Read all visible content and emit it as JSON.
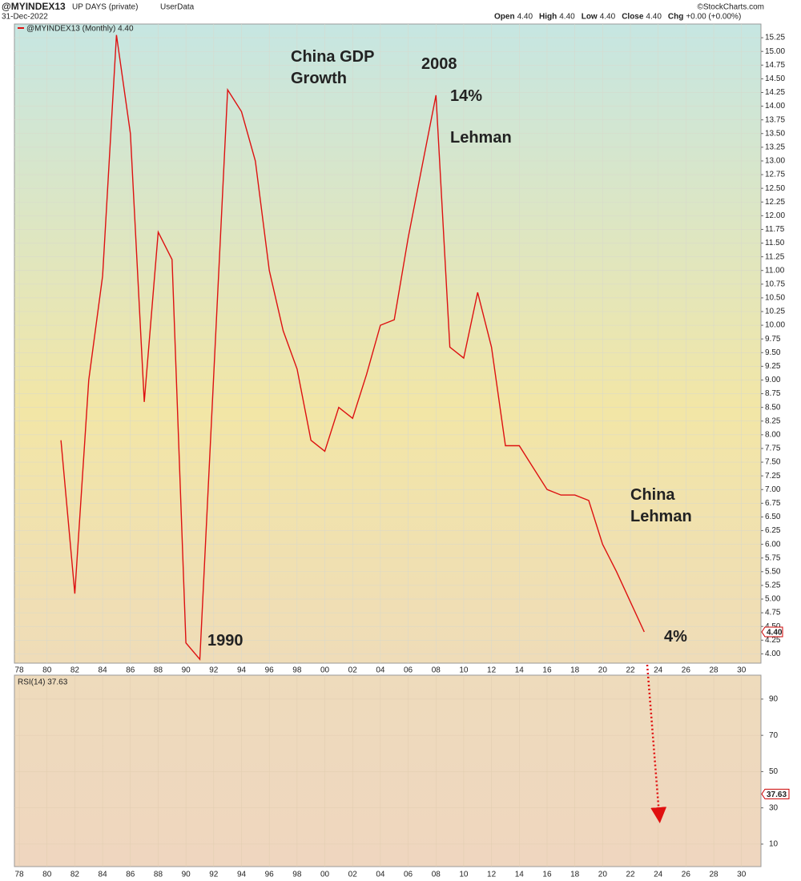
{
  "chart_data": {
    "type": "line",
    "symbol": "@MYINDEX13",
    "description": "UP DAYS (private)",
    "source": "UserData",
    "date": "31-Dec-2022",
    "credit": "©StockCharts.com",
    "ohlc": [
      {
        "label": "Open",
        "value": "4.40"
      },
      {
        "label": "High",
        "value": "4.40"
      },
      {
        "label": "Low",
        "value": "4.40"
      },
      {
        "label": "Close",
        "value": "4.40"
      },
      {
        "label": "Chg",
        "value": "+0.00 (+0.00%)"
      }
    ],
    "last_value": {
      "value": 4.4,
      "label": "4.40"
    },
    "x": [
      1981,
      1982,
      1983,
      1984,
      1985,
      1986,
      1987,
      1988,
      1989,
      1990,
      1991,
      1993,
      1994,
      1995,
      1996,
      1997,
      1998,
      1999,
      2000,
      2001,
      2002,
      2003,
      2004,
      2005,
      2006,
      2007,
      2008,
      2009,
      2010,
      2011,
      2012,
      2013,
      2014,
      2015,
      2016,
      2017,
      2018,
      2019,
      2020,
      2021,
      2022,
      2023
    ],
    "series": [
      {
        "name": "@MYINDEX13 (Monthly) 4.40",
        "color": "#dd1111",
        "values": [
          7.9,
          5.1,
          9.0,
          10.9,
          15.3,
          13.5,
          8.6,
          11.7,
          11.2,
          4.2,
          3.9,
          14.3,
          13.9,
          13.0,
          11.0,
          9.9,
          9.2,
          7.9,
          7.7,
          8.5,
          8.3,
          9.1,
          10.0,
          10.1,
          11.6,
          12.9,
          14.2,
          9.6,
          9.4,
          10.6,
          9.6,
          7.8,
          7.8,
          7.4,
          7.0,
          6.9,
          6.9,
          6.8,
          6.0,
          5.5,
          4.95,
          4.4
        ]
      }
    ],
    "xlim": [
      1977.65,
      2031.4
    ],
    "xticks": [
      {
        "value": 1978,
        "label": "78"
      },
      {
        "value": 1980,
        "label": "80"
      },
      {
        "value": 1982,
        "label": "82"
      },
      {
        "value": 1984,
        "label": "84"
      },
      {
        "value": 1986,
        "label": "86"
      },
      {
        "value": 1988,
        "label": "88"
      },
      {
        "value": 1990,
        "label": "90"
      },
      {
        "value": 1992,
        "label": "92"
      },
      {
        "value": 1994,
        "label": "94"
      },
      {
        "value": 1996,
        "label": "96"
      },
      {
        "value": 1998,
        "label": "98"
      },
      {
        "value": 2000,
        "label": "00"
      },
      {
        "value": 2002,
        "label": "02"
      },
      {
        "value": 2004,
        "label": "04"
      },
      {
        "value": 2006,
        "label": "06"
      },
      {
        "value": 2008,
        "label": "08"
      },
      {
        "value": 2010,
        "label": "10"
      },
      {
        "value": 2012,
        "label": "12"
      },
      {
        "value": 2014,
        "label": "14"
      },
      {
        "value": 2016,
        "label": "16"
      },
      {
        "value": 2018,
        "label": "18"
      },
      {
        "value": 2020,
        "label": "20"
      },
      {
        "value": 2022,
        "label": "22"
      },
      {
        "value": 2024,
        "label": "24"
      },
      {
        "value": 2026,
        "label": "26"
      },
      {
        "value": 2028,
        "label": "28"
      },
      {
        "value": 2030,
        "label": "30"
      }
    ],
    "ylim": [
      3.83,
      15.5
    ],
    "yticks": [
      {
        "value": 4,
        "label": "4.00"
      },
      {
        "value": 4.25,
        "label": "4.25"
      },
      {
        "value": 4.5,
        "label": "4.50"
      },
      {
        "value": 4.75,
        "label": "4.75"
      },
      {
        "value": 5,
        "label": "5.00"
      },
      {
        "value": 5.25,
        "label": "5.25"
      },
      {
        "value": 5.5,
        "label": "5.50"
      },
      {
        "value": 5.75,
        "label": "5.75"
      },
      {
        "value": 6,
        "label": "6.00"
      },
      {
        "value": 6.25,
        "label": "6.25"
      },
      {
        "value": 6.5,
        "label": "6.50"
      },
      {
        "value": 6.75,
        "label": "6.75"
      },
      {
        "value": 7,
        "label": "7.00"
      },
      {
        "value": 7.25,
        "label": "7.25"
      },
      {
        "value": 7.5,
        "label": "7.50"
      },
      {
        "value": 7.75,
        "label": "7.75"
      },
      {
        "value": 8,
        "label": "8.00"
      },
      {
        "value": 8.25,
        "label": "8.25"
      },
      {
        "value": 8.5,
        "label": "8.50"
      },
      {
        "value": 8.75,
        "label": "8.75"
      },
      {
        "value": 9,
        "label": "9.00"
      },
      {
        "value": 9.25,
        "label": "9.25"
      },
      {
        "value": 9.5,
        "label": "9.50"
      },
      {
        "value": 9.75,
        "label": "9.75"
      },
      {
        "value": 10,
        "label": "10.00"
      },
      {
        "value": 10.25,
        "label": "10.25"
      },
      {
        "value": 10.5,
        "label": "10.50"
      },
      {
        "value": 10.75,
        "label": "10.75"
      },
      {
        "value": 11,
        "label": "11.00"
      },
      {
        "value": 11.25,
        "label": "11.25"
      },
      {
        "value": 11.5,
        "label": "11.50"
      },
      {
        "value": 11.75,
        "label": "11.75"
      },
      {
        "value": 12,
        "label": "12.00"
      },
      {
        "value": 12.25,
        "label": "12.25"
      },
      {
        "value": 12.5,
        "label": "12.50"
      },
      {
        "value": 12.75,
        "label": "12.75"
      },
      {
        "value": 13,
        "label": "13.00"
      },
      {
        "value": 13.25,
        "label": "13.25"
      },
      {
        "value": 13.5,
        "label": "13.50"
      },
      {
        "value": 13.75,
        "label": "13.75"
      },
      {
        "value": 14,
        "label": "14.00"
      },
      {
        "value": 14.25,
        "label": "14.25"
      },
      {
        "value": 14.5,
        "label": "14.50"
      },
      {
        "value": 14.75,
        "label": "14.75"
      },
      {
        "value": 15,
        "label": "15.00"
      },
      {
        "value": 15.25,
        "label": "15.25"
      }
    ],
    "grid": true,
    "annotations": [
      {
        "text": [
          "China GDP",
          "Growth"
        ],
        "color": "#e01010"
      },
      {
        "text": [
          "2008"
        ],
        "color": "#1a1ad0"
      },
      {
        "text": [
          "14%"
        ],
        "color": "#1a1ad0"
      },
      {
        "text": [
          "Lehman"
        ],
        "color": "#1a1ad0"
      },
      {
        "text": [
          "China",
          "Lehman"
        ],
        "color": "#1a1ad0"
      },
      {
        "text": [
          "1990"
        ],
        "color": "#1a1ad0"
      },
      {
        "text": [
          "4%"
        ],
        "color": "#1a1ad0"
      }
    ],
    "indicator": {
      "name": "RSI(14) 37.63",
      "last_value": {
        "value": 37.63,
        "label": "37.63"
      },
      "ylim": [
        -2.4,
        103.2
      ],
      "yticks": [
        10,
        30,
        50,
        70,
        90
      ]
    }
  }
}
